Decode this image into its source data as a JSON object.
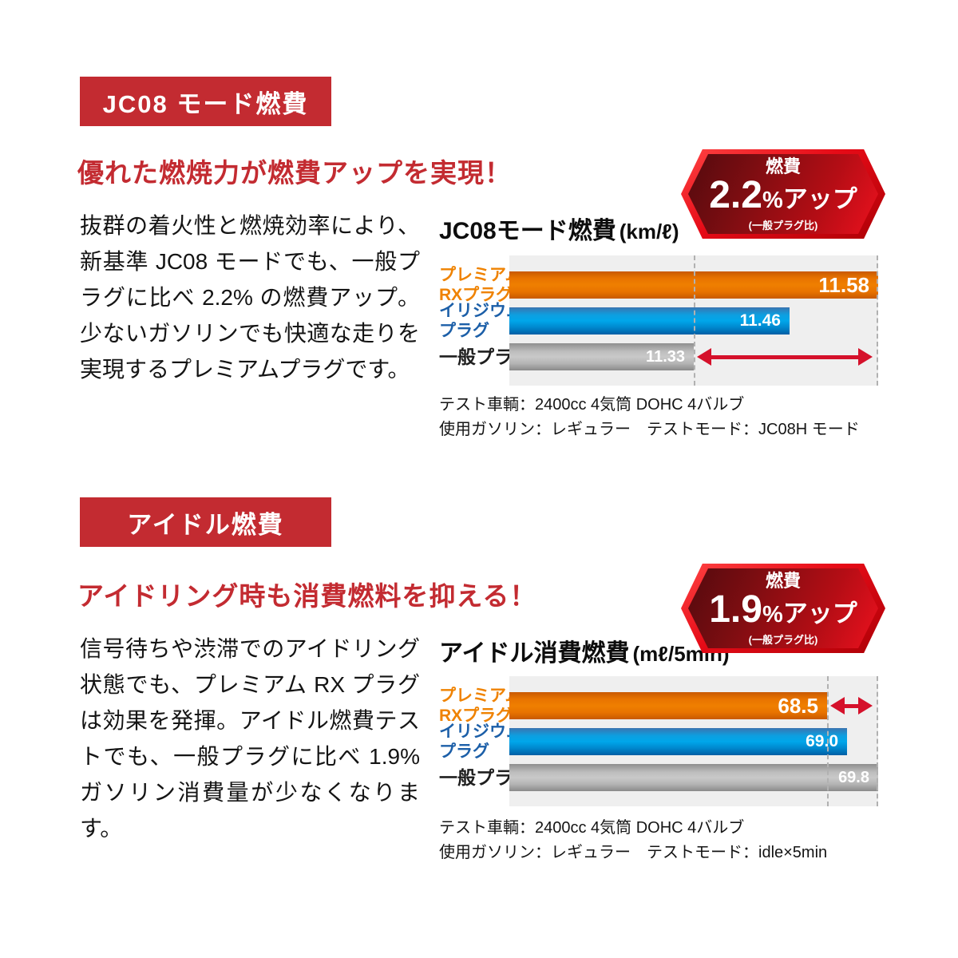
{
  "palette": {
    "brand_red": "#c32b31",
    "arrow_red": "#d5112b",
    "bar_orange": "#ee7c00",
    "bar_blue": "#00a0e4",
    "bar_gray": "#bdbdbd",
    "label_orange": "#ef8200",
    "label_blue": "#1c5fa8",
    "plot_bg": "#efefef"
  },
  "sections": [
    {
      "banner_label": "JC08 モード燃費",
      "headline": "優れた燃焼力が燃費アップを実現！",
      "body": "抜群の着火性と燃焼効率により、新基準 JC08 モードでも、一般プラグに比べ 2.2% の燃費アップ。少ないガソリンでも快適な走りを実現するプレミアムプラグです。",
      "badge": {
        "top_label": "燃費",
        "value": "2.2",
        "percent_sign": "%",
        "suffix": "アップ",
        "note": "(一般プラグ比)"
      }
    },
    {
      "banner_label": "アイドル燃費",
      "headline": "アイドリング時も消費燃料を抑える！",
      "body": "信号待ちや渋滞でのアイドリング状態でも、プレミアム RX プラグは効果を発揮。アイドル燃費テストでも、一般プラグに比べ 1.9% ガソリン消費量が少なくなります。",
      "badge": {
        "top_label": "燃費",
        "value": "1.9",
        "percent_sign": "%",
        "suffix": "アップ",
        "note": "(一般プラグ比)"
      }
    }
  ],
  "chart_data": [
    {
      "type": "bar",
      "orientation": "horizontal",
      "title": "JC08モード燃費",
      "unit": "(km/ℓ)",
      "categories": [
        "プレミアム RXプラグ",
        "イリジウム プラグ",
        "一般プラグ"
      ],
      "label_lines": [
        [
          "プレミアム",
          "RXプラグ"
        ],
        [
          "イリジウム",
          "プラグ"
        ],
        [
          "一般プラグ"
        ]
      ],
      "values": [
        11.58,
        11.46,
        11.33
      ],
      "value_labels": [
        "11.58",
        "11.46",
        "11.33"
      ],
      "bar_colors": [
        "orange",
        "blue",
        "gray"
      ],
      "xlim": [
        11.08,
        11.58
      ],
      "guides": [
        11.33,
        11.58
      ],
      "arrow": {
        "row": 2,
        "from": 11.33,
        "to": 11.58
      },
      "notes": [
        "テスト車輌：2400cc 4気筒 DOHC 4バルブ",
        "使用ガソリン：レギュラー　テストモード：JC08H モード"
      ]
    },
    {
      "type": "bar",
      "orientation": "horizontal",
      "title": "アイドル消費燃費",
      "unit": "(mℓ/5min)",
      "categories": [
        "プレミアム RXプラグ",
        "イリジウム プラグ",
        "一般プラグ"
      ],
      "label_lines": [
        [
          "プレミアム",
          "RXプラグ"
        ],
        [
          "イリジウム",
          "プラグ"
        ],
        [
          "一般プラグ"
        ]
      ],
      "values": [
        68.5,
        69.0,
        69.8
      ],
      "value_labels": [
        "68.5",
        "69.0",
        "69.8"
      ],
      "bar_colors": [
        "orange",
        "blue",
        "gray"
      ],
      "xlim": [
        60.4,
        69.8
      ],
      "guides": [
        68.5,
        69.8
      ],
      "arrow": {
        "row": 0,
        "from": 68.5,
        "to": 69.8
      },
      "notes": [
        "テスト車輌：2400cc 4気筒 DOHC 4バルブ",
        "使用ガソリン：レギュラー　テストモード：idle×5min"
      ]
    }
  ]
}
